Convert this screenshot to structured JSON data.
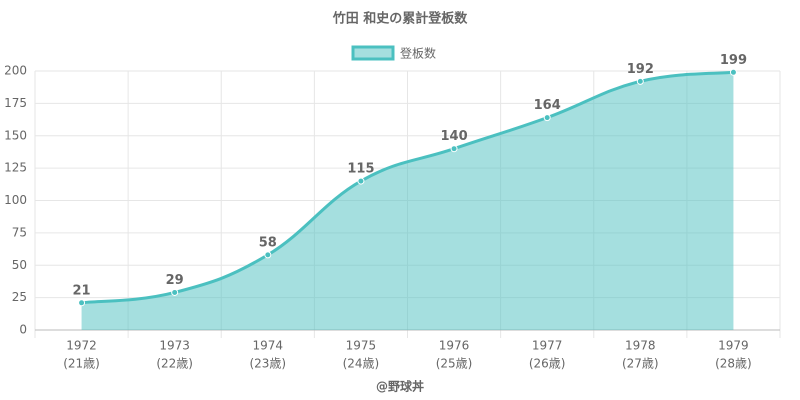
{
  "chart_data": {
    "type": "area",
    "title": "竹田 和史の累計登板数",
    "categories": [
      [
        "1972",
        "(21歳)"
      ],
      [
        "1973",
        "(22歳)"
      ],
      [
        "1974",
        "(23歳)"
      ],
      [
        "1975",
        "(24歳)"
      ],
      [
        "1976",
        "(25歳)"
      ],
      [
        "1977",
        "(26歳)"
      ],
      [
        "1978",
        "(27歳)"
      ],
      [
        "1979",
        "(28歳)"
      ]
    ],
    "series": [
      {
        "name": "登板数",
        "color": "#4bc0c0",
        "values": [
          21,
          29,
          58,
          115,
          140,
          164,
          192,
          199
        ]
      }
    ],
    "ylim": [
      0,
      200
    ],
    "yticks": [
      0,
      25,
      50,
      75,
      100,
      125,
      150,
      175,
      200
    ],
    "grid": true,
    "legend": "top",
    "source": "@野球丼"
  }
}
